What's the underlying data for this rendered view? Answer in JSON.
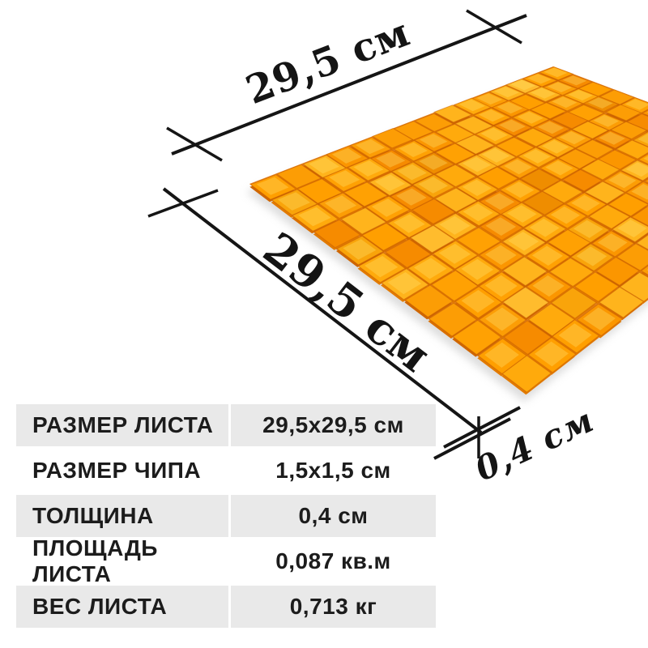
{
  "annotations": {
    "top_width": "29,5 см",
    "side_length": "29,5 см",
    "thickness": "0,4 см",
    "line_color": "#151515"
  },
  "spec_table": {
    "rows": [
      {
        "label": "РАЗМЕР ЛИСТА",
        "value": "29,5x29,5 см"
      },
      {
        "label": "РАЗМЕР ЧИПА",
        "value": "1,5x1,5 см"
      },
      {
        "label": "ТОЛЩИНА",
        "value": "0,4 см"
      },
      {
        "label": "ПЛОЩАДЬ ЛИСТА",
        "value": "0,087 кв.м"
      },
      {
        "label": "ВЕС ЛИСТА",
        "value": "0,713 кг"
      }
    ],
    "stripe_color": "#e9e9e9",
    "text_color": "#1c1c1c"
  },
  "mosaic": {
    "description": "orange glass mosaic sheet in perspective",
    "columns": 15,
    "rows": 12,
    "palette": [
      "#ffaa0c",
      "#ffa103",
      "#fb9600",
      "#ff9f00",
      "#f68b00",
      "#ffb41c",
      "#f9a40a",
      "#ef8d00",
      "#ffbc2d",
      "#fc9d05"
    ],
    "palette_weights": [
      3,
      3,
      2,
      2,
      2,
      2,
      2,
      1,
      1,
      2
    ],
    "side_colors": [
      "#d96f00",
      "#e27a00",
      "#cf6600"
    ],
    "backing_color": "#e07912",
    "edge_stroke": "rgba(198,92,0,0.5)",
    "highlight_color": "rgba(255,228,110,0.34)",
    "shadow_color": "#c2c2c2"
  }
}
